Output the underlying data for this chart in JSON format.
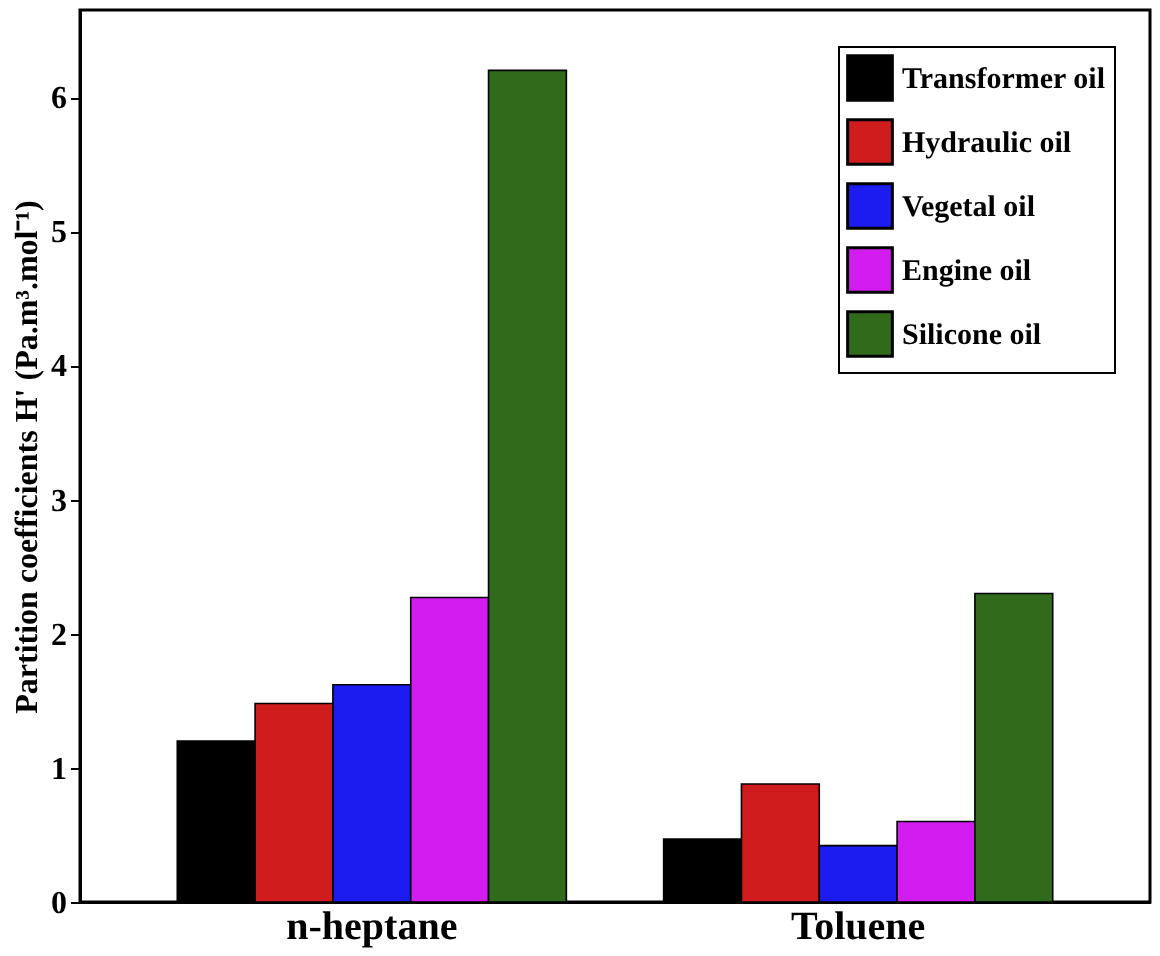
{
  "chart_data": {
    "type": "bar",
    "ylabel": "Partition coefficients H' (Pa.m³.mol⁻¹)",
    "categories": [
      "n-heptane",
      "Toluene"
    ],
    "series": [
      {
        "name": "Transformer oil",
        "color": "#000000",
        "values": [
          1.2,
          0.47
        ]
      },
      {
        "name": "Hydraulic oil",
        "color": "#d01c1c",
        "values": [
          1.48,
          0.88
        ]
      },
      {
        "name": "Vegetal oil",
        "color": "#1c1cf0",
        "values": [
          1.62,
          0.42
        ]
      },
      {
        "name": "Engine oil",
        "color": "#d21cf0",
        "values": [
          2.27,
          0.6
        ]
      },
      {
        "name": "Silicone oil",
        "color": "#2f6b1a",
        "values": [
          6.2,
          2.3
        ]
      }
    ],
    "ylim": [
      0,
      6.65
    ],
    "yticks": [
      0,
      1,
      2,
      3,
      4,
      5,
      6
    ],
    "grid": false,
    "legend": "top right"
  }
}
